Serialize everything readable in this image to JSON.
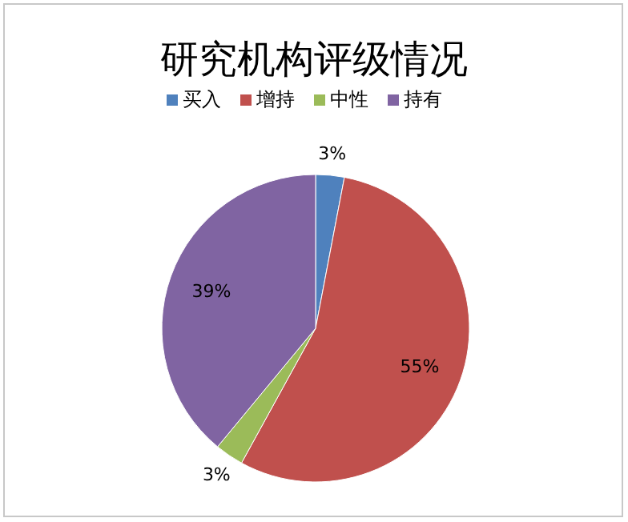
{
  "chart_data": {
    "type": "pie",
    "title": "研究机构评级情况",
    "categories": [
      "买入",
      "增持",
      "中性",
      "持有"
    ],
    "values": [
      3,
      55,
      3,
      39
    ],
    "colors": [
      "#4f81bd",
      "#c0504d",
      "#9bbb59",
      "#8064a2"
    ],
    "value_labels": [
      "3%",
      "55%",
      "3%",
      "39%"
    ],
    "legend": "top"
  }
}
